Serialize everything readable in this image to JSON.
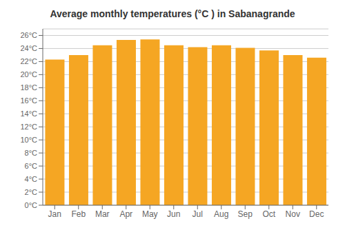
{
  "chart_data": {
    "type": "bar",
    "title": "Average monthly temperatures (°C ) in Sabanagrande",
    "categories": [
      "Jan",
      "Feb",
      "Mar",
      "Apr",
      "May",
      "Jun",
      "Jul",
      "Aug",
      "Sep",
      "Oct",
      "Nov",
      "Dec"
    ],
    "values": [
      22.3,
      23.0,
      24.5,
      25.3,
      25.4,
      24.5,
      24.2,
      24.5,
      24.1,
      23.7,
      23.0,
      22.6
    ],
    "color": "#F5A623",
    "ylim": [
      0,
      27
    ],
    "yticks": [
      {
        "value": 0,
        "label": "0°C"
      },
      {
        "value": 2,
        "label": "2°C"
      },
      {
        "value": 4,
        "label": "4°C"
      },
      {
        "value": 6,
        "label": "6°C"
      },
      {
        "value": 8,
        "label": "8°C"
      },
      {
        "value": 10,
        "label": "10°C"
      },
      {
        "value": 12,
        "label": "12°C"
      },
      {
        "value": 14,
        "label": "14°C"
      },
      {
        "value": 16,
        "label": "16°C"
      },
      {
        "value": 18,
        "label": "18°C"
      },
      {
        "value": 20,
        "label": "20°C"
      },
      {
        "value": 22,
        "label": "22°C"
      },
      {
        "value": 24,
        "label": "24°C"
      },
      {
        "value": 26,
        "label": "26°C"
      }
    ],
    "grid": true
  }
}
